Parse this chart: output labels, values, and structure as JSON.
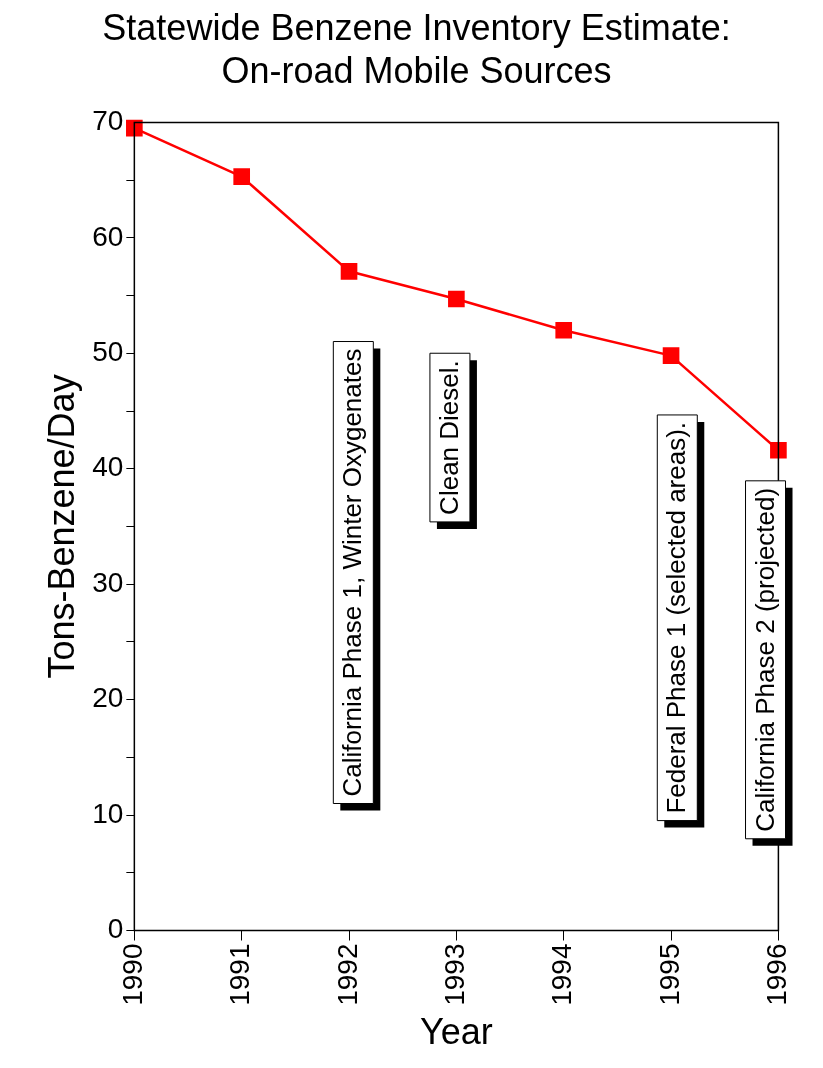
{
  "chart_data": {
    "type": "line",
    "title": "Statewide Benzene Inventory Estimate:\nOn-road Mobile Sources",
    "xlabel": "Year",
    "ylabel": "Tons-Benzene/Day",
    "x": [
      1990,
      1991,
      1992,
      1993,
      1994,
      1995,
      1996
    ],
    "series": [
      {
        "color": "#ff0000",
        "values": [
          69.5,
          65.3,
          57.1,
          54.7,
          52.0,
          49.8,
          41.6
        ]
      }
    ],
    "xlim": [
      1990,
      1996
    ],
    "xticks": [
      1990,
      1991,
      1992,
      1993,
      1994,
      1995,
      1996
    ],
    "ylim": [
      0,
      70
    ],
    "yticks": [
      0,
      {
        "value": 5,
        "label": null
      },
      10,
      {
        "value": 15,
        "label": null
      },
      20,
      {
        "value": 25,
        "label": null
      },
      30,
      {
        "value": 35,
        "label": null
      },
      40,
      {
        "value": 45,
        "label": null
      },
      50,
      {
        "value": 55,
        "label": null
      },
      60,
      {
        "value": 65,
        "label": null
      },
      70
    ],
    "grid": false,
    "legend": false,
    "marker": "square",
    "line_style": "solid",
    "annotations": [
      "California Phase 1, Winter Oxygenates",
      "Clean Diesel.",
      "Federal Phase 1 (selected areas).",
      "California Phase 2 (projected)"
    ]
  }
}
